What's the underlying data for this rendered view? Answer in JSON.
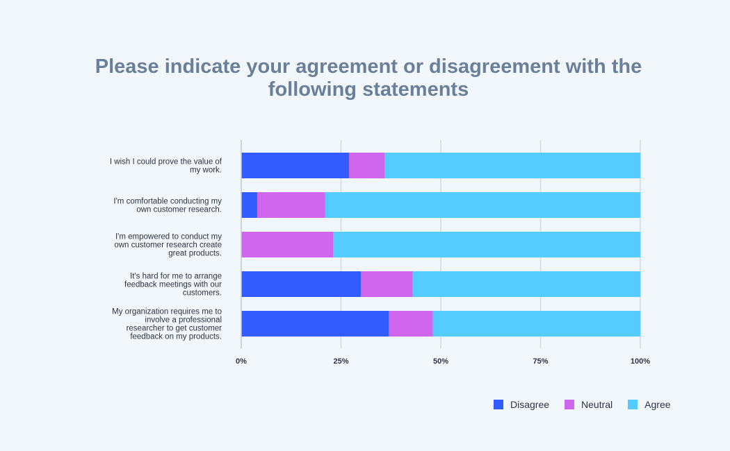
{
  "chart_data": {
    "type": "bar",
    "orientation": "horizontal",
    "stacked": true,
    "title": "Please indicate your agreement or disagreement with the following statements",
    "categories": [
      [
        "I wish I could prove the value of",
        "my work."
      ],
      [
        "I'm comfortable conducting my",
        "own customer research."
      ],
      [
        "I'm empowered to conduct my",
        "own customer research create",
        "great products."
      ],
      [
        "It's hard for me to arrange",
        "feedback meetings with our",
        "customers."
      ],
      [
        "My organization requires me to",
        "involve a professional",
        "researcher to get customer",
        "feedback on my products."
      ]
    ],
    "series": [
      {
        "name": "Disagree",
        "color": "#335cff",
        "values": [
          27,
          4,
          0,
          30,
          37
        ]
      },
      {
        "name": "Neutral",
        "color": "#d066ee",
        "values": [
          9,
          17,
          23,
          13,
          11
        ]
      },
      {
        "name": "Agree",
        "color": "#55ccff",
        "values": [
          64,
          79,
          77,
          57,
          52
        ]
      }
    ],
    "xlim": [
      0,
      100
    ],
    "xticks": [
      0,
      25,
      50,
      75,
      100
    ],
    "xtick_labels": [
      "0%",
      "25%",
      "50%",
      "75%",
      "100%"
    ],
    "grid": true,
    "legend_position": "bottom-right"
  }
}
